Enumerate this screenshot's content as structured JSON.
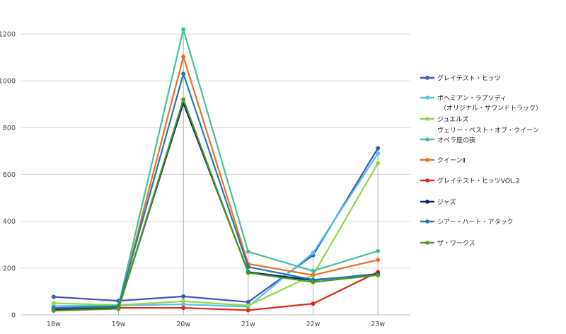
{
  "chart_data": {
    "type": "line",
    "title": "",
    "xlabel": "",
    "ylabel": "",
    "categories": [
      "18w",
      "19w",
      "20w",
      "21w",
      "22w",
      "23w"
    ],
    "ylim": [
      0,
      1300
    ],
    "yticks": [
      0,
      200,
      400,
      600,
      800,
      1000,
      1200
    ],
    "grid": "horizontal",
    "legend_position": "right",
    "series": [
      {
        "name": "グレイテスト・ヒッツ",
        "color": "#3a55c0",
        "values": [
          77,
          60,
          79,
          55,
          255,
          712
        ]
      },
      {
        "name": "ボヘミアン・ラプソディ\n（オリジナル・サウンドトラック）",
        "color": "#4ec3ef",
        "values": [
          38,
          40,
          45,
          35,
          265,
          690
        ]
      },
      {
        "name": "ジュエルズ",
        "color": "#92d646",
        "values": [
          50,
          42,
          58,
          40,
          170,
          648
        ]
      },
      {
        "name": "ヴェリー・ベスト・オブ・クイーン\nオペラ座の夜",
        "color": "#3fc39a",
        "values": [
          28,
          40,
          1220,
          270,
          188,
          273
        ]
      },
      {
        "name": "クイーンⅡ",
        "color": "#f26c20",
        "values": [
          25,
          32,
          1103,
          218,
          170,
          235
        ]
      },
      {
        "name": "グレイテスト・ヒッツVOL.2",
        "color": "#e0281a",
        "values": [
          28,
          30,
          30,
          20,
          48,
          183
        ]
      },
      {
        "name": "ジャズ",
        "color": "#0d1f7a",
        "values": [
          22,
          28,
          905,
          183,
          148,
          175
        ]
      },
      {
        "name": "シアー・ハート・アタック",
        "color": "#1a7cb0",
        "values": [
          30,
          36,
          1030,
          205,
          150,
          172
        ]
      },
      {
        "name": "ザ・ワークス",
        "color": "#4e9a18",
        "values": [
          18,
          26,
          920,
          180,
          140,
          170
        ]
      }
    ]
  }
}
